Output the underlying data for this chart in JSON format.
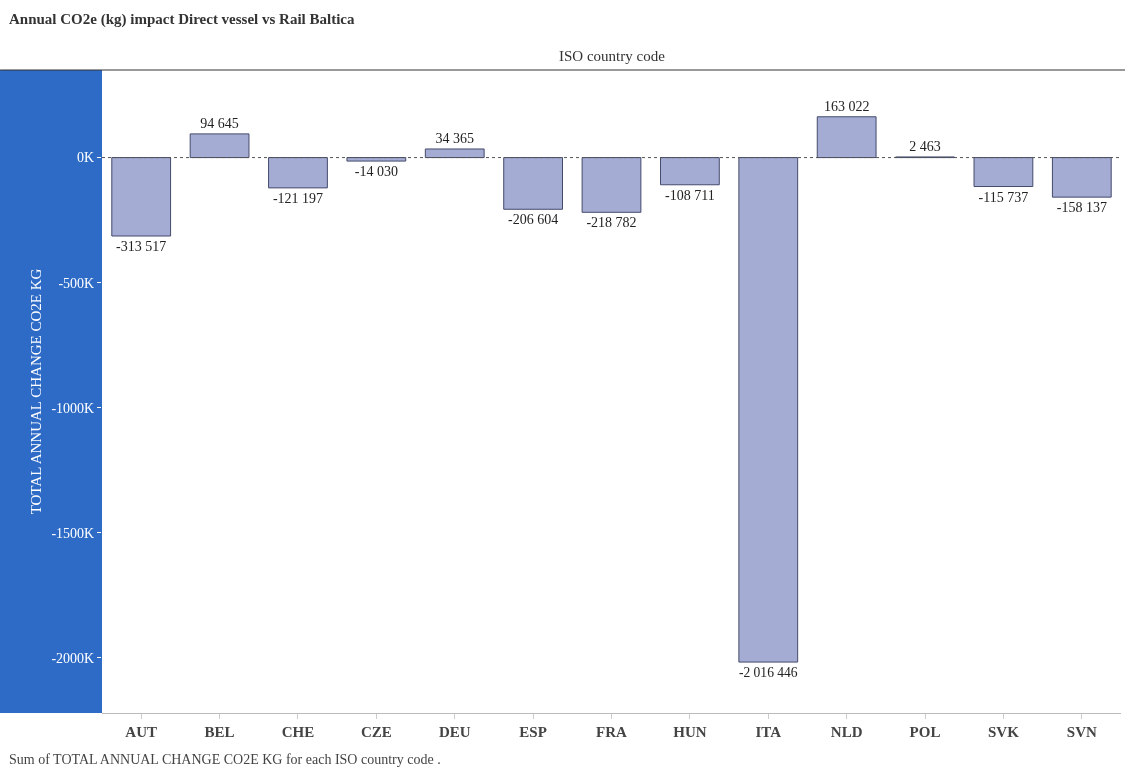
{
  "chart_data": {
    "type": "bar",
    "title": "Annual CO2e (kg) impact Direct vessel vs Rail Baltica",
    "xlabel": "ISO country code",
    "ylabel": "TOTAL ANNUAL CHANGE CO2E KG",
    "categories": [
      "AUT",
      "BEL",
      "CHE",
      "CZE",
      "DEU",
      "ESP",
      "FRA",
      "HUN",
      "ITA",
      "NLD",
      "POL",
      "SVK",
      "SVN"
    ],
    "series": [
      {
        "color": "#a4acd4",
        "values": [
          -313517,
          94645,
          -121197,
          -14030,
          34365,
          -206604,
          -218782,
          -108711,
          -2016446,
          163022,
          2463,
          -115737,
          -158137
        ],
        "value_labels": [
          "-313 517",
          "94 645",
          "-121 197",
          "-14 030",
          "34 365",
          "-206 604",
          "-218 782",
          "-108 711",
          "-2 016 446",
          "163 022",
          "2 463",
          "-115 737",
          "-158 137"
        ]
      }
    ],
    "ylim": [
      -2220000,
      350000
    ],
    "yticks": [
      {
        "value": 0,
        "label": "0K"
      },
      {
        "value": -500000,
        "label": "-500K"
      },
      {
        "value": -1000000,
        "label": "-1000K"
      },
      {
        "value": -1500000,
        "label": "-1500K"
      },
      {
        "value": -2000000,
        "label": "-2000K"
      }
    ],
    "ref_lines": [
      {
        "axis": "y",
        "value": 0,
        "line_style": "dotted",
        "color": "#555555"
      }
    ],
    "grid": false,
    "annotations": [
      "Sum of TOTAL ANNUAL CHANGE CO2E KG for each ISO country code ."
    ]
  }
}
